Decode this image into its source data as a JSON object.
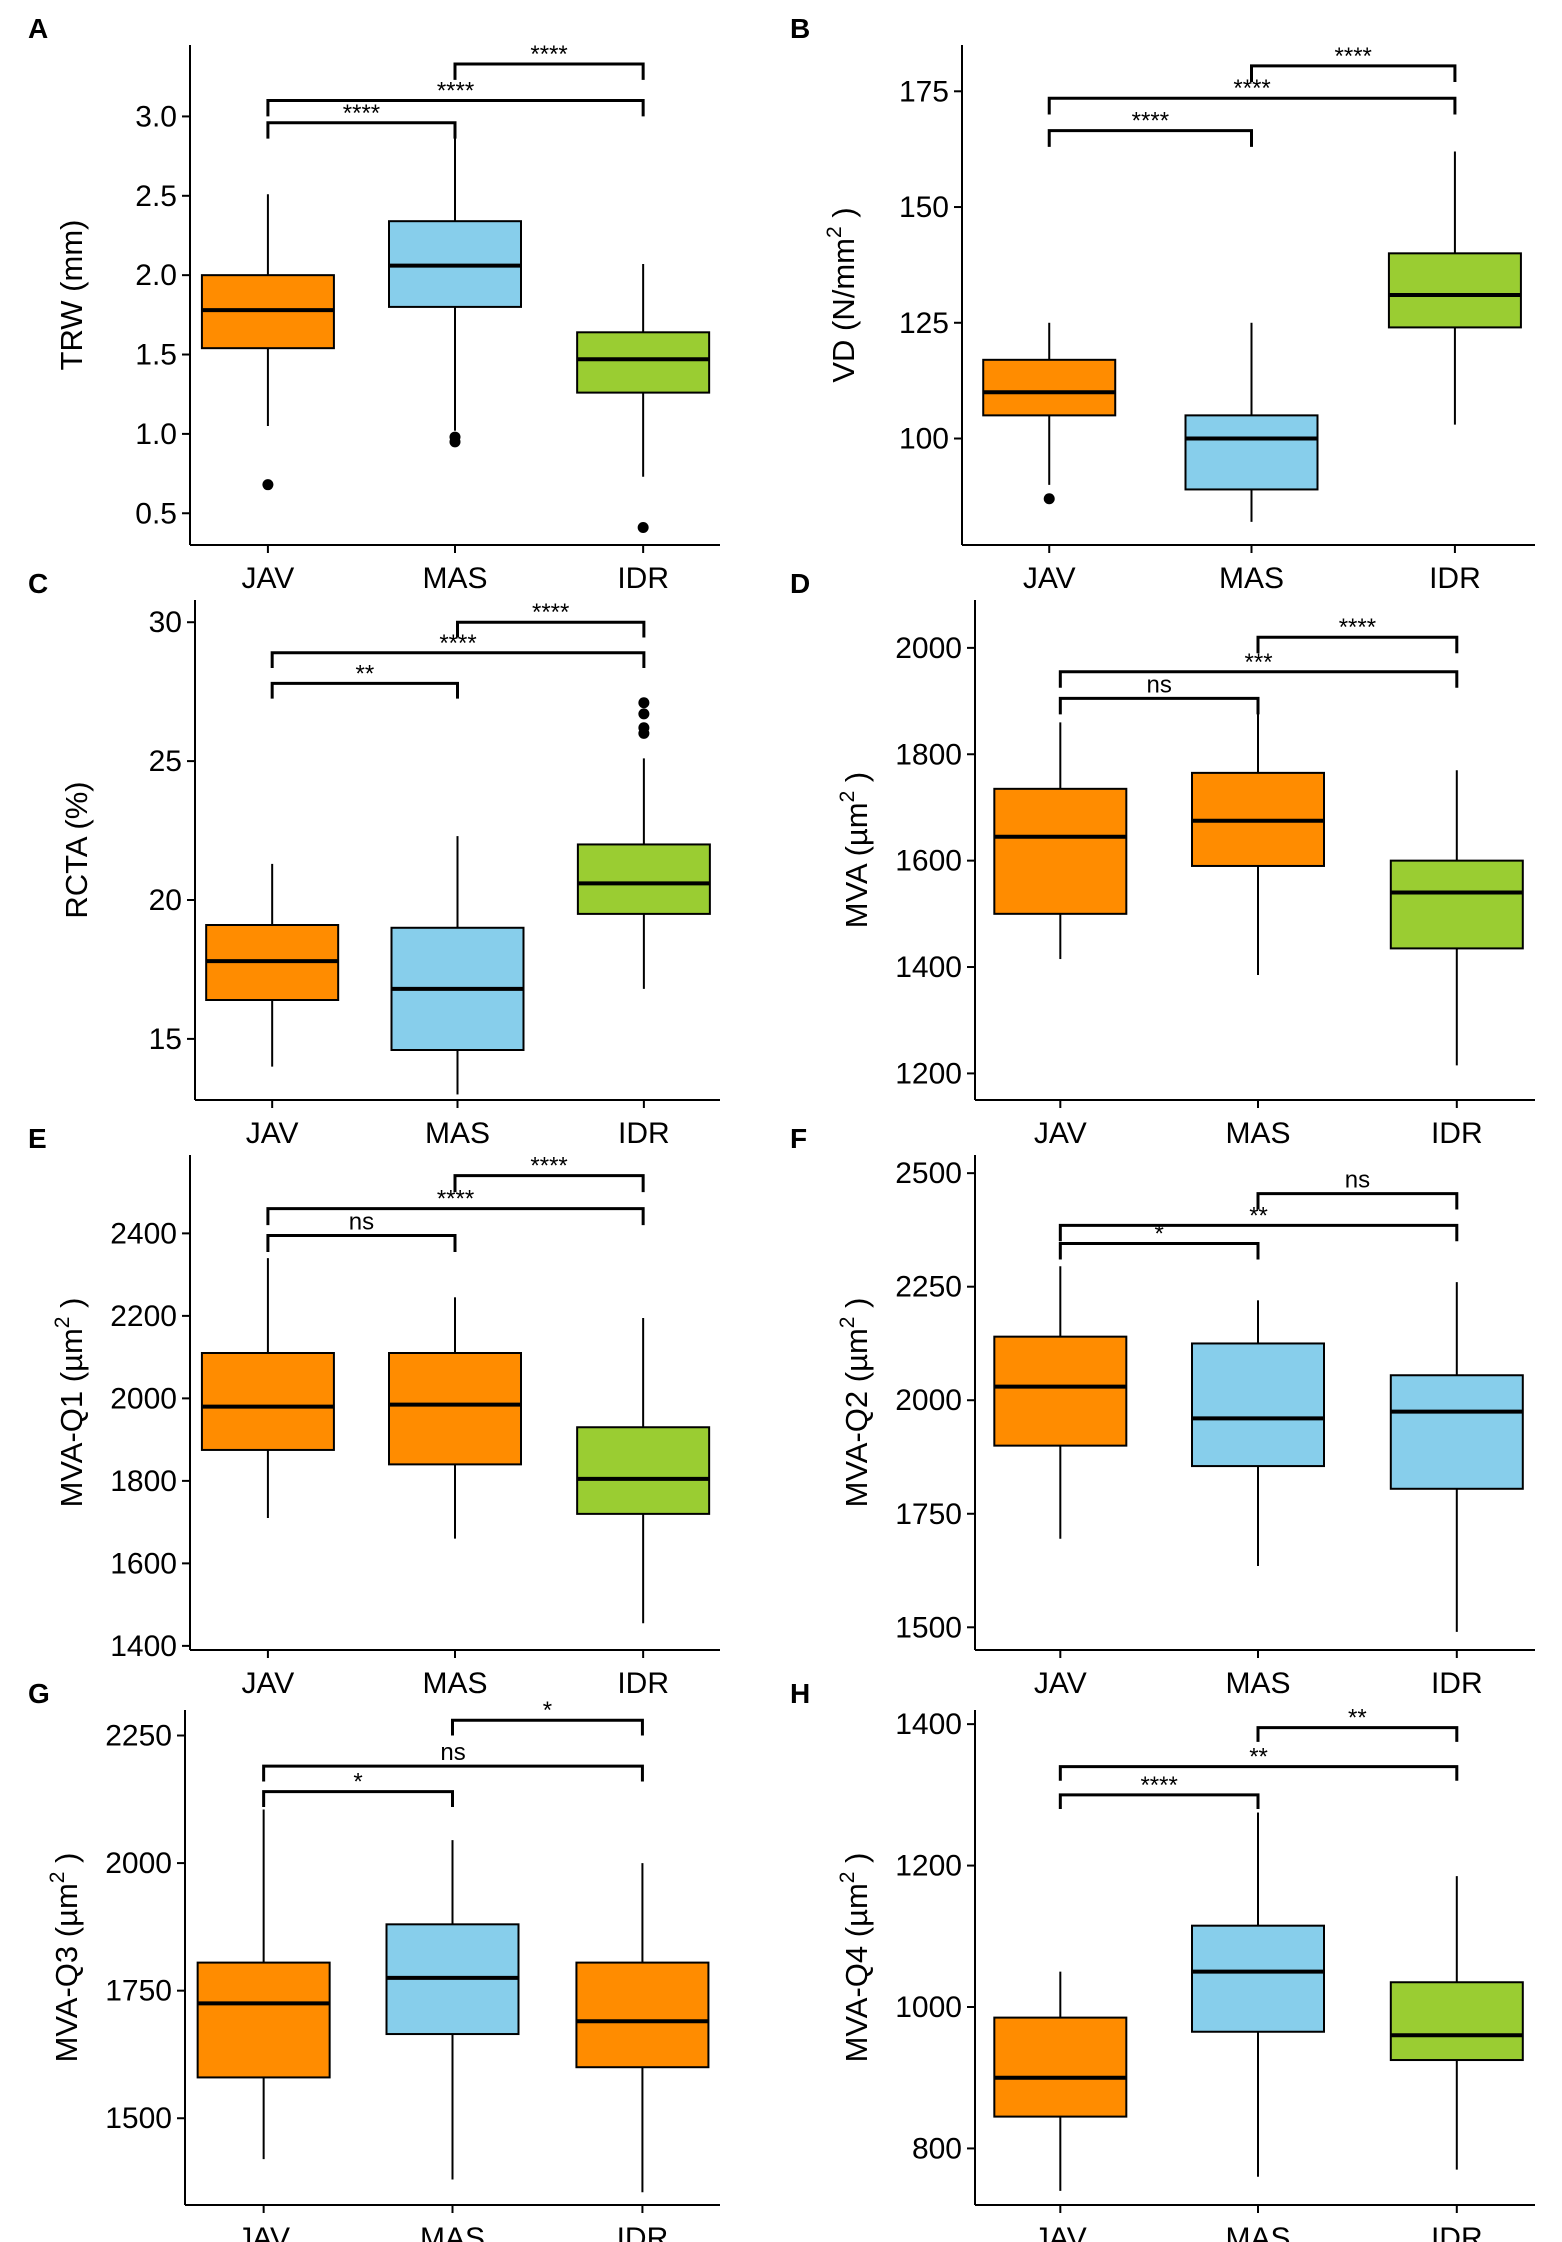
{
  "figure": {
    "categories": [
      "JAV",
      "MAS",
      "IDR"
    ],
    "colors": {
      "orange": "#ff8c00",
      "blue": "#87ceeb",
      "green": "#9acd32"
    }
  },
  "chart_data": [
    {
      "type": "box",
      "panel": "A",
      "ylabel": "TRW (mm)",
      "ylabel_main": "TRW (mm)",
      "ylabel_sup": "",
      "ylabel_end": "",
      "ylim": [
        0.3,
        3.45
      ],
      "yticks": [
        0.5,
        1.0,
        1.5,
        2.0,
        2.5,
        3.0
      ],
      "ytick_labels": [
        "0.5",
        "1.0",
        "1.5",
        "2.0",
        "2.5",
        "3.0"
      ],
      "categories": [
        "JAV",
        "MAS",
        "IDR"
      ],
      "boxes": [
        {
          "category": "JAV",
          "color": "orange",
          "whisker_low": 1.05,
          "q1": 1.54,
          "median": 1.78,
          "q3": 2.0,
          "whisker_high": 2.51,
          "outliers": [
            0.68
          ]
        },
        {
          "category": "MAS",
          "color": "blue",
          "whisker_low": 1.02,
          "q1": 1.8,
          "median": 2.06,
          "q3": 2.34,
          "whisker_high": 2.95,
          "outliers": [
            0.95,
            0.98
          ]
        },
        {
          "category": "IDR",
          "color": "green",
          "whisker_low": 0.73,
          "q1": 1.26,
          "median": 1.47,
          "q3": 1.64,
          "whisker_high": 2.07,
          "outliers": [
            0.41
          ]
        }
      ],
      "comparisons": [
        {
          "pair": [
            "JAV",
            "MAS"
          ],
          "label": "****",
          "y": 2.96,
          "tick": 0.1
        },
        {
          "pair": [
            "JAV",
            "IDR"
          ],
          "label": "****",
          "y": 3.1,
          "tick": 0.1
        },
        {
          "pair": [
            "MAS",
            "IDR"
          ],
          "label": "****",
          "y": 3.33,
          "tick": 0.1
        }
      ]
    },
    {
      "type": "box",
      "panel": "B",
      "ylabel": "VD (N/mm2)",
      "ylabel_main": "VD (N/mm",
      "ylabel_sup": "2",
      "ylabel_end": ")",
      "ylim": [
        77,
        185
      ],
      "yticks": [
        100,
        125,
        150,
        175
      ],
      "ytick_labels": [
        "100",
        "125",
        "150",
        "175"
      ],
      "categories": [
        "JAV",
        "MAS",
        "IDR"
      ],
      "boxes": [
        {
          "category": "JAV",
          "color": "orange",
          "whisker_low": 90,
          "q1": 105,
          "median": 110,
          "q3": 117,
          "whisker_high": 125,
          "outliers": [
            87
          ]
        },
        {
          "category": "MAS",
          "color": "blue",
          "whisker_low": 82,
          "q1": 89,
          "median": 100,
          "q3": 105,
          "whisker_high": 125,
          "outliers": []
        },
        {
          "category": "IDR",
          "color": "green",
          "whisker_low": 103,
          "q1": 124,
          "median": 131,
          "q3": 140,
          "whisker_high": 162,
          "outliers": []
        }
      ],
      "comparisons": [
        {
          "pair": [
            "JAV",
            "MAS"
          ],
          "label": "****",
          "y": 166.5,
          "tick": 3.5
        },
        {
          "pair": [
            "JAV",
            "IDR"
          ],
          "label": "****",
          "y": 173.5,
          "tick": 3.5
        },
        {
          "pair": [
            "MAS",
            "IDR"
          ],
          "label": "****",
          "y": 180.5,
          "tick": 3.5
        }
      ]
    },
    {
      "type": "box",
      "panel": "C",
      "ylabel": "RCTA (%)",
      "ylabel_main": "RCTA (%)",
      "ylabel_sup": "",
      "ylabel_end": "",
      "ylim": [
        12.8,
        30.8
      ],
      "yticks": [
        15,
        20,
        25,
        30
      ],
      "ytick_labels": [
        "15",
        "20",
        "25",
        "30"
      ],
      "categories": [
        "JAV",
        "MAS",
        "IDR"
      ],
      "boxes": [
        {
          "category": "JAV",
          "color": "orange",
          "whisker_low": 14,
          "q1": 16.4,
          "median": 17.8,
          "q3": 19.1,
          "whisker_high": 21.3,
          "outliers": []
        },
        {
          "category": "MAS",
          "color": "blue",
          "whisker_low": 13,
          "q1": 14.6,
          "median": 16.8,
          "q3": 19,
          "whisker_high": 22.3,
          "outliers": []
        },
        {
          "category": "IDR",
          "color": "green",
          "whisker_low": 16.8,
          "q1": 19.5,
          "median": 20.6,
          "q3": 22,
          "whisker_high": 25.1,
          "outliers": [
            26,
            26.2,
            26.7,
            27.1
          ]
        }
      ],
      "comparisons": [
        {
          "pair": [
            "JAV",
            "MAS"
          ],
          "label": "**",
          "y": 27.8,
          "tick": 0.55
        },
        {
          "pair": [
            "JAV",
            "IDR"
          ],
          "label": "****",
          "y": 28.9,
          "tick": 0.55
        },
        {
          "pair": [
            "MAS",
            "IDR"
          ],
          "label": "****",
          "y": 30.0,
          "tick": 0.55
        }
      ]
    },
    {
      "type": "box",
      "panel": "D",
      "ylabel": "MVA (µm2)",
      "ylabel_main": "MVA (µm",
      "ylabel_sup": "2",
      "ylabel_end": ")",
      "ylim": [
        1150,
        2090
      ],
      "yticks": [
        1200,
        1400,
        1600,
        1800,
        2000
      ],
      "ytick_labels": [
        "1200",
        "1400",
        "1600",
        "1800",
        "2000"
      ],
      "categories": [
        "JAV",
        "MAS",
        "IDR"
      ],
      "boxes": [
        {
          "category": "JAV",
          "color": "orange",
          "whisker_low": 1415,
          "q1": 1500,
          "median": 1645,
          "q3": 1735,
          "whisker_high": 1860,
          "outliers": []
        },
        {
          "category": "MAS",
          "color": "orange",
          "whisker_low": 1385,
          "q1": 1590,
          "median": 1675,
          "q3": 1765,
          "whisker_high": 1885,
          "outliers": []
        },
        {
          "category": "IDR",
          "color": "green",
          "whisker_low": 1215,
          "q1": 1435,
          "median": 1540,
          "q3": 1600,
          "whisker_high": 1770,
          "outliers": []
        }
      ],
      "comparisons": [
        {
          "pair": [
            "JAV",
            "MAS"
          ],
          "label": "ns",
          "y": 1905,
          "tick": 30
        },
        {
          "pair": [
            "JAV",
            "IDR"
          ],
          "label": "***",
          "y": 1955,
          "tick": 30
        },
        {
          "pair": [
            "MAS",
            "IDR"
          ],
          "label": "****",
          "y": 2020,
          "tick": 30
        }
      ]
    },
    {
      "type": "box",
      "panel": "E",
      "ylabel": "MVA-Q1 (µm2)",
      "ylabel_main": "MVA-Q1 (µm",
      "ylabel_sup": "2",
      "ylabel_end": ")",
      "ylim": [
        1390,
        2590
      ],
      "yticks": [
        1400,
        1600,
        1800,
        2000,
        2200,
        2400
      ],
      "ytick_labels": [
        "1400",
        "1600",
        "1800",
        "2000",
        "2200",
        "2400"
      ],
      "categories": [
        "JAV",
        "MAS",
        "IDR"
      ],
      "boxes": [
        {
          "category": "JAV",
          "color": "orange",
          "whisker_low": 1710,
          "q1": 1875,
          "median": 1980,
          "q3": 2110,
          "whisker_high": 2340,
          "outliers": []
        },
        {
          "category": "MAS",
          "color": "orange",
          "whisker_low": 1660,
          "q1": 1840,
          "median": 1985,
          "q3": 2110,
          "whisker_high": 2245,
          "outliers": []
        },
        {
          "category": "IDR",
          "color": "green",
          "whisker_low": 1455,
          "q1": 1720,
          "median": 1805,
          "q3": 1930,
          "whisker_high": 2195,
          "outliers": []
        }
      ],
      "comparisons": [
        {
          "pair": [
            "JAV",
            "MAS"
          ],
          "label": "ns",
          "y": 2395,
          "tick": 40
        },
        {
          "pair": [
            "JAV",
            "IDR"
          ],
          "label": "****",
          "y": 2460,
          "tick": 40
        },
        {
          "pair": [
            "MAS",
            "IDR"
          ],
          "label": "****",
          "y": 2540,
          "tick": 40
        }
      ]
    },
    {
      "type": "box",
      "panel": "F",
      "ylabel": "MVA-Q2 (µm2)",
      "ylabel_main": "MVA-Q2 (µm",
      "ylabel_sup": "2",
      "ylabel_end": ")",
      "ylim": [
        1450,
        2540
      ],
      "yticks": [
        1500,
        1750,
        2000,
        2250,
        2500
      ],
      "ytick_labels": [
        "1500",
        "1750",
        "2000",
        "2250",
        "2500"
      ],
      "categories": [
        "JAV",
        "MAS",
        "IDR"
      ],
      "boxes": [
        {
          "category": "JAV",
          "color": "orange",
          "whisker_low": 1695,
          "q1": 1900,
          "median": 2030,
          "q3": 2140,
          "whisker_high": 2295,
          "outliers": []
        },
        {
          "category": "MAS",
          "color": "blue",
          "whisker_low": 1635,
          "q1": 1855,
          "median": 1960,
          "q3": 2125,
          "whisker_high": 2220,
          "outliers": []
        },
        {
          "category": "IDR",
          "color": "blue",
          "whisker_low": 1490,
          "q1": 1805,
          "median": 1975,
          "q3": 2055,
          "whisker_high": 2260,
          "outliers": []
        }
      ],
      "comparisons": [
        {
          "pair": [
            "JAV",
            "MAS"
          ],
          "label": "*",
          "y": 2345,
          "tick": 35
        },
        {
          "pair": [
            "JAV",
            "IDR"
          ],
          "label": "**",
          "y": 2385,
          "tick": 35
        },
        {
          "pair": [
            "MAS",
            "IDR"
          ],
          "label": "ns",
          "y": 2455,
          "tick": 35
        }
      ]
    },
    {
      "type": "box",
      "panel": "G",
      "ylabel": "MVA-Q3 (µm2)",
      "ylabel_main": "MVA-Q3 (µm",
      "ylabel_sup": "2",
      "ylabel_end": ")",
      "ylim": [
        1330,
        2300
      ],
      "yticks": [
        1500,
        1750,
        2000,
        2250
      ],
      "ytick_labels": [
        "1500",
        "1750",
        "2000",
        "2250"
      ],
      "categories": [
        "JAV",
        "MAS",
        "IDR"
      ],
      "boxes": [
        {
          "category": "JAV",
          "color": "orange",
          "whisker_low": 1420,
          "q1": 1580,
          "median": 1725,
          "q3": 1805,
          "whisker_high": 2105,
          "outliers": []
        },
        {
          "category": "MAS",
          "color": "blue",
          "whisker_low": 1380,
          "q1": 1665,
          "median": 1775,
          "q3": 1880,
          "whisker_high": 2045,
          "outliers": []
        },
        {
          "category": "IDR",
          "color": "orange",
          "whisker_low": 1355,
          "q1": 1600,
          "median": 1690,
          "q3": 1805,
          "whisker_high": 2000,
          "outliers": []
        }
      ],
      "comparisons": [
        {
          "pair": [
            "JAV",
            "MAS"
          ],
          "label": "*",
          "y": 2140,
          "tick": 30
        },
        {
          "pair": [
            "JAV",
            "IDR"
          ],
          "label": "ns",
          "y": 2190,
          "tick": 30
        },
        {
          "pair": [
            "MAS",
            "IDR"
          ],
          "label": "*",
          "y": 2280,
          "tick": 30
        }
      ]
    },
    {
      "type": "box",
      "panel": "H",
      "ylabel": "MVA-Q4 (µm2)",
      "ylabel_main": "MVA-Q4 (µm",
      "ylabel_sup": "2",
      "ylabel_end": ")",
      "ylim": [
        720,
        1420
      ],
      "yticks": [
        800,
        1000,
        1200,
        1400
      ],
      "ytick_labels": [
        "800",
        "1000",
        "1200",
        "1400"
      ],
      "categories": [
        "JAV",
        "MAS",
        "IDR"
      ],
      "boxes": [
        {
          "category": "JAV",
          "color": "orange",
          "whisker_low": 740,
          "q1": 845,
          "median": 900,
          "q3": 985,
          "whisker_high": 1050,
          "outliers": []
        },
        {
          "category": "MAS",
          "color": "blue",
          "whisker_low": 760,
          "q1": 965,
          "median": 1050,
          "q3": 1115,
          "whisker_high": 1275,
          "outliers": []
        },
        {
          "category": "IDR",
          "color": "green",
          "whisker_low": 770,
          "q1": 925,
          "median": 960,
          "q3": 1035,
          "whisker_high": 1185,
          "outliers": []
        }
      ],
      "comparisons": [
        {
          "pair": [
            "JAV",
            "MAS"
          ],
          "label": "****",
          "y": 1300,
          "tick": 20
        },
        {
          "pair": [
            "JAV",
            "IDR"
          ],
          "label": "**",
          "y": 1340,
          "tick": 20
        },
        {
          "pair": [
            "MAS",
            "IDR"
          ],
          "label": "**",
          "y": 1395,
          "tick": 20
        }
      ]
    }
  ]
}
